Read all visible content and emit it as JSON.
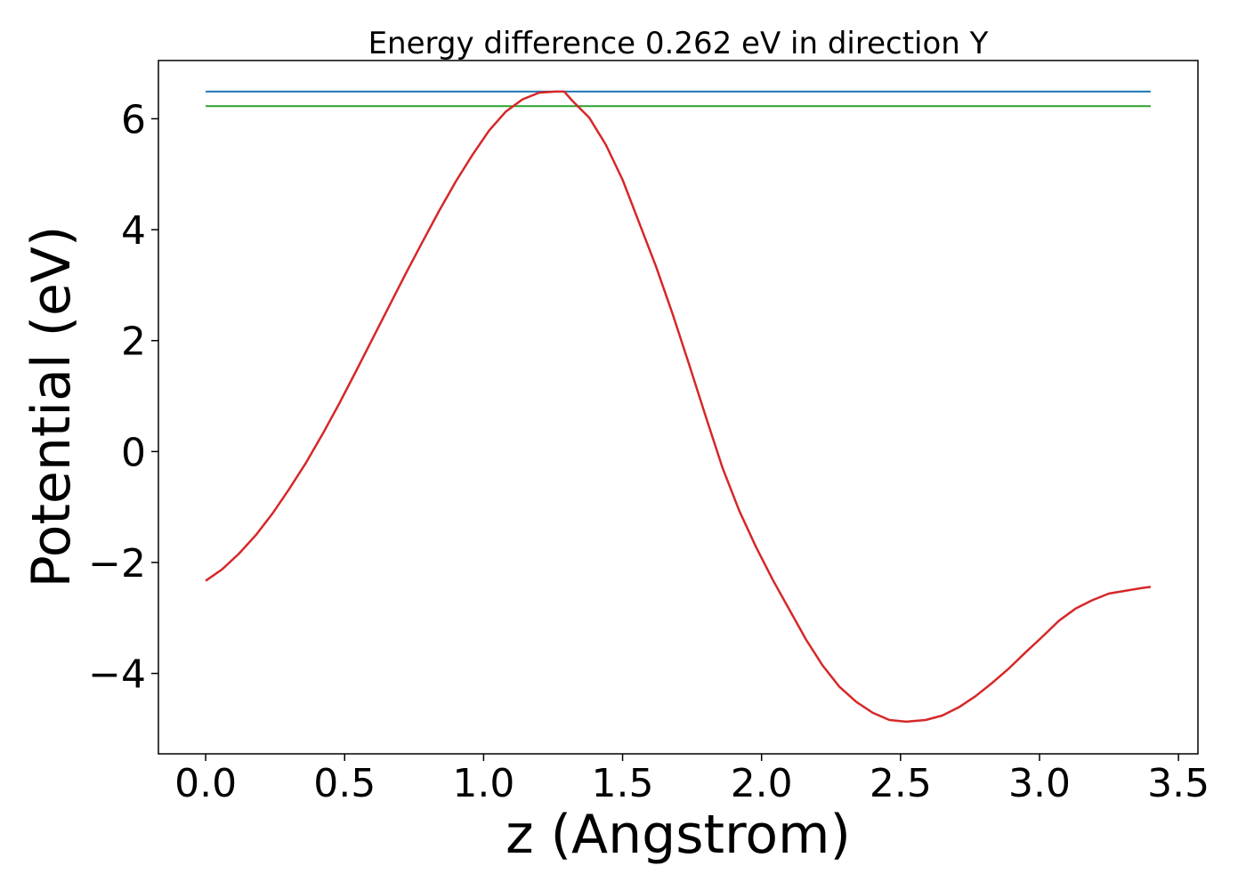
{
  "chart_data": {
    "type": "line",
    "title": "Energy difference 0.262 eV in direction Y",
    "xlabel": "z (Angstrom)",
    "ylabel": "Potential (eV)",
    "xlim": [
      -0.17,
      3.57
    ],
    "ylim": [
      -5.45,
      7.05
    ],
    "xticks": [
      0.0,
      0.5,
      1.0,
      1.5,
      2.0,
      2.5,
      3.0,
      3.5
    ],
    "xtick_labels": [
      "0.0",
      "0.5",
      "1.0",
      "1.5",
      "2.0",
      "2.5",
      "3.0",
      "3.5"
    ],
    "yticks": [
      -4,
      -2,
      0,
      2,
      4,
      6
    ],
    "ytick_labels": [
      "−4",
      "−2",
      "0",
      "2",
      "4",
      "6"
    ],
    "grid": false,
    "series": [
      {
        "color": "#d62728",
        "x": [
          0.0,
          0.06,
          0.12,
          0.18,
          0.24,
          0.3,
          0.36,
          0.42,
          0.48,
          0.54,
          0.6,
          0.66,
          0.72,
          0.78,
          0.84,
          0.9,
          0.96,
          1.02,
          1.08,
          1.14,
          1.2,
          1.26,
          1.29,
          1.32,
          1.38,
          1.44,
          1.5,
          1.56,
          1.62,
          1.68,
          1.74,
          1.8,
          1.86,
          1.92,
          1.98,
          2.04,
          2.1,
          2.16,
          2.22,
          2.28,
          2.34,
          2.4,
          2.46,
          2.52,
          2.59,
          2.65,
          2.71,
          2.77,
          2.83,
          2.89,
          2.95,
          3.01,
          3.07,
          3.13,
          3.19,
          3.25,
          3.31,
          3.37,
          3.4
        ],
        "y": [
          -2.33,
          -2.12,
          -1.84,
          -1.51,
          -1.12,
          -0.68,
          -0.21,
          0.31,
          0.86,
          1.44,
          2.03,
          2.62,
          3.21,
          3.78,
          4.34,
          4.87,
          5.35,
          5.79,
          6.13,
          6.35,
          6.47,
          6.49,
          6.49,
          6.32,
          6.02,
          5.53,
          4.9,
          4.12,
          3.34,
          2.48,
          1.56,
          0.62,
          -0.3,
          -1.07,
          -1.72,
          -2.31,
          -2.85,
          -3.39,
          -3.86,
          -4.24,
          -4.51,
          -4.71,
          -4.84,
          -4.87,
          -4.84,
          -4.76,
          -4.61,
          -4.41,
          -4.17,
          -3.91,
          -3.62,
          -3.34,
          -3.05,
          -2.83,
          -2.68,
          -2.56,
          -2.51,
          -2.46,
          -2.44
        ]
      },
      {
        "color": "#1f77b4",
        "x": [
          0.0,
          3.4
        ],
        "y": [
          6.49,
          6.49
        ]
      },
      {
        "color": "#2ca02c",
        "x": [
          0.0,
          3.4
        ],
        "y": [
          6.228,
          6.228
        ]
      }
    ]
  }
}
